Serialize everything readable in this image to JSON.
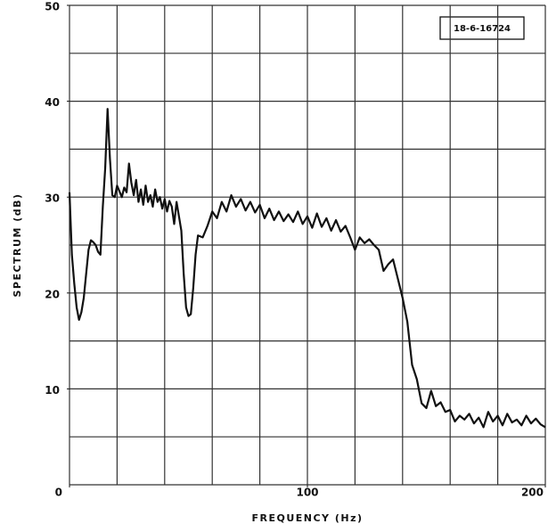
{
  "chart_data": {
    "type": "line",
    "xlabel": "FREQUENCY (Hz)",
    "ylabel": "SPECTRUM (dB)",
    "annotation": "18-6-16724",
    "xlim": [
      0,
      200
    ],
    "ylim": [
      0,
      50
    ],
    "xticks": [
      0,
      100,
      200
    ],
    "yticks": [
      10,
      20,
      30,
      40,
      50
    ],
    "xgrid": [
      0,
      20,
      40,
      60,
      80,
      100,
      120,
      140,
      160,
      180,
      200
    ],
    "ygrid": [
      0,
      5,
      10,
      15,
      20,
      25,
      30,
      35,
      40,
      45,
      50
    ],
    "grid": true,
    "series": [
      {
        "name": "spectrum",
        "color": "#111111",
        "x": [
          0,
          1,
          2,
          3,
          4,
          5,
          6,
          7,
          8,
          9,
          10,
          11,
          12,
          13,
          14,
          15,
          16,
          17,
          18,
          19,
          20,
          22,
          23,
          24,
          25,
          26,
          27,
          28,
          29,
          30,
          31,
          32,
          33,
          34,
          35,
          36,
          37,
          38,
          39,
          40,
          41,
          42,
          43,
          44,
          45,
          46,
          47,
          48,
          49,
          50,
          51,
          52,
          53,
          54,
          56,
          58,
          60,
          62,
          64,
          66,
          68,
          70,
          72,
          74,
          76,
          78,
          80,
          82,
          84,
          86,
          88,
          90,
          92,
          94,
          96,
          98,
          100,
          102,
          104,
          106,
          108,
          110,
          112,
          114,
          116,
          118,
          120,
          122,
          124,
          126,
          128,
          130,
          132,
          134,
          136,
          138,
          140,
          142,
          144,
          146,
          148,
          150,
          152,
          154,
          156,
          158,
          160,
          162,
          164,
          166,
          168,
          170,
          172,
          174,
          176,
          178,
          180,
          182,
          184,
          186,
          188,
          190,
          192,
          194,
          196,
          198,
          200
        ],
        "values": [
          30.5,
          24,
          21,
          18.5,
          17.2,
          18,
          19.5,
          22,
          24.5,
          25.5,
          25.3,
          25,
          24.3,
          24,
          29,
          33,
          39.2,
          34,
          30.2,
          30,
          31.2,
          30,
          31,
          30.5,
          33.5,
          31.5,
          30.2,
          31.8,
          29.5,
          30.8,
          29.2,
          31.2,
          29.5,
          30.2,
          29,
          30.8,
          29.5,
          30,
          28.8,
          29.8,
          28.5,
          29.6,
          29,
          27.2,
          29.5,
          28,
          26.5,
          22,
          18.5,
          17.6,
          17.8,
          20.5,
          24,
          26,
          25.8,
          27,
          28.5,
          27.8,
          29.5,
          28.5,
          30.2,
          29,
          29.8,
          28.6,
          29.5,
          28.4,
          29.2,
          27.8,
          28.8,
          27.6,
          28.5,
          27.5,
          28.2,
          27.4,
          28.5,
          27.2,
          28,
          26.8,
          28.3,
          26.9,
          27.8,
          26.5,
          27.6,
          26.4,
          27,
          25.8,
          24.5,
          25.8,
          25.2,
          25.6,
          25,
          24.5,
          22.3,
          23,
          23.5,
          21.5,
          19.5,
          17,
          12.5,
          11,
          8.5,
          8,
          9.8,
          8.2,
          8.6,
          7.6,
          7.8,
          6.6,
          7.2,
          6.8,
          7.4,
          6.4,
          7,
          6,
          7.6,
          6.6,
          7.2,
          6.2,
          7.4,
          6.5,
          6.8,
          6.2,
          7.2,
          6.4,
          6.9,
          6.3,
          6
        ]
      }
    ]
  }
}
